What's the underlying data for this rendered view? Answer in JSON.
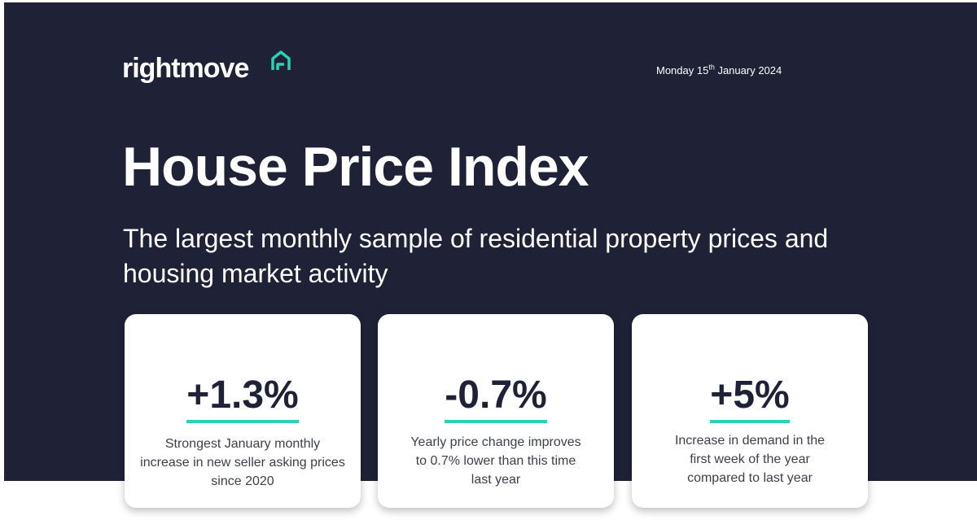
{
  "header": {
    "logo_text": "rightmove",
    "date_prefix": "Monday 15",
    "date_suffix": "th",
    "date_rest": " January 2024"
  },
  "hero": {
    "title": "House Price Index",
    "subtitle": "The largest monthly sample of residential property prices and housing market activity"
  },
  "stats": [
    {
      "value": "+1.3%",
      "description": "Strongest January monthly increase in new seller asking prices since 2020"
    },
    {
      "value": "-0.7%",
      "description": "Yearly price change improves to 0.7% lower than this time last year"
    },
    {
      "value": "+5%",
      "description": "Increase in demand in the first week of the year compared to last year"
    }
  ],
  "colors": {
    "background_navy": "#1f2237",
    "accent_teal": "#2ad1b5",
    "card_white": "#ffffff"
  },
  "icons": {
    "logo_icon": "house-icon"
  }
}
